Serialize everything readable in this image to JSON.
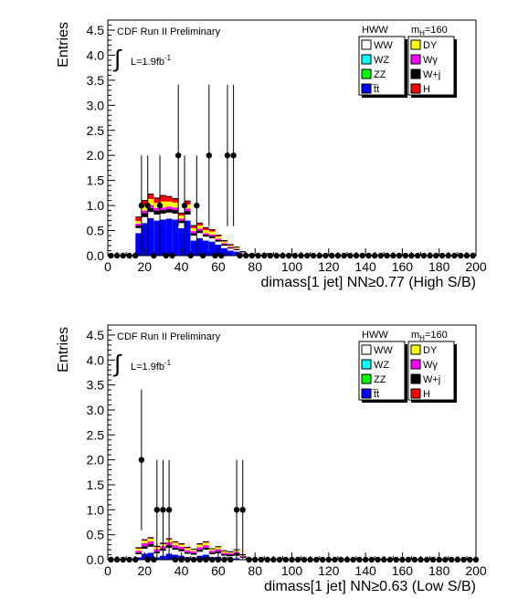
{
  "chart_data": [
    {
      "type": "stacked-histogram-with-data-points",
      "xlabel": "dimass[1 jet] NN≥0.77 (High S/B)",
      "ylabel": "Entries",
      "xlim": [
        0,
        200
      ],
      "ylim": [
        0,
        4.7
      ],
      "xticks": [
        0,
        20,
        40,
        60,
        80,
        100,
        120,
        140,
        160,
        180,
        200
      ],
      "yticks": [
        0.0,
        0.5,
        1.0,
        1.5,
        2.0,
        2.5,
        3.0,
        3.5,
        4.0,
        4.5
      ],
      "bin_width": 3.333,
      "annotations": {
        "experiment": "CDF Run II Preliminary",
        "lumi_symbol": "∫",
        "lumi_text": "L=1.9fb",
        "lumi_exp": "-1",
        "legend_title_left": "HWW",
        "legend_title_right_main": "m",
        "legend_title_right_sub": "H",
        "legend_title_right_rest": "=160"
      },
      "legend": [
        {
          "label": "WW",
          "color": "#ffffff"
        },
        {
          "label": "DY",
          "color": "#ffff00"
        },
        {
          "label": "WZ",
          "color": "#00ffff"
        },
        {
          "label": "Wγ",
          "color": "#ff00ff"
        },
        {
          "label": "ZZ",
          "color": "#00ff00"
        },
        {
          "label": "W+j",
          "color": "#000000"
        },
        {
          "label": "t̅t",
          "color": "#0000ff"
        },
        {
          "label": "H",
          "color": "#ff0000"
        }
      ],
      "stack": [
        {
          "x": 16.7,
          "tt": 0.45,
          "ww": 0.1,
          "wj": 0.05,
          "wg": 0.04,
          "dy": 0.05,
          "h": 0.08
        },
        {
          "x": 20.0,
          "tt": 0.65,
          "ww": 0.12,
          "wj": 0.08,
          "wg": 0.05,
          "dy": 0.1,
          "h": 0.1
        },
        {
          "x": 23.3,
          "tt": 0.75,
          "ww": 0.12,
          "wj": 0.08,
          "wg": 0.06,
          "dy": 0.12,
          "h": 0.1
        },
        {
          "x": 26.7,
          "tt": 0.7,
          "ww": 0.12,
          "wj": 0.08,
          "wg": 0.05,
          "dy": 0.1,
          "h": 0.1
        },
        {
          "x": 30.0,
          "tt": 0.72,
          "ww": 0.12,
          "wj": 0.07,
          "wg": 0.05,
          "dy": 0.12,
          "h": 0.12
        },
        {
          "x": 33.3,
          "tt": 0.74,
          "ww": 0.12,
          "wj": 0.07,
          "wg": 0.05,
          "dy": 0.1,
          "h": 0.1
        },
        {
          "x": 36.7,
          "tt": 0.72,
          "ww": 0.12,
          "wj": 0.07,
          "wg": 0.05,
          "dy": 0.1,
          "h": 0.08
        },
        {
          "x": 40.0,
          "tt": 0.55,
          "ww": 0.1,
          "wj": 0.05,
          "wg": 0.04,
          "dy": 0.06,
          "h": 0.05
        },
        {
          "x": 43.3,
          "tt": 0.7,
          "ww": 0.12,
          "wj": 0.07,
          "wg": 0.05,
          "dy": 0.08,
          "h": 0.07
        },
        {
          "x": 46.7,
          "tt": 0.3,
          "ww": 0.1,
          "wj": 0.05,
          "wg": 0.04,
          "dy": 0.06,
          "h": 0.05
        },
        {
          "x": 50.0,
          "tt": 0.35,
          "ww": 0.1,
          "wj": 0.05,
          "wg": 0.04,
          "dy": 0.06,
          "h": 0.05
        },
        {
          "x": 53.3,
          "tt": 0.3,
          "ww": 0.08,
          "wj": 0.04,
          "wg": 0.03,
          "dy": 0.06,
          "h": 0.05
        },
        {
          "x": 56.7,
          "tt": 0.28,
          "ww": 0.07,
          "wj": 0.04,
          "wg": 0.03,
          "dy": 0.06,
          "h": 0.04
        },
        {
          "x": 60.0,
          "tt": 0.22,
          "ww": 0.06,
          "wj": 0.03,
          "wg": 0.03,
          "dy": 0.04,
          "h": 0.03
        },
        {
          "x": 63.3,
          "tt": 0.15,
          "ww": 0.05,
          "wj": 0.03,
          "wg": 0.02,
          "dy": 0.03,
          "h": 0.02
        },
        {
          "x": 66.7,
          "tt": 0.1,
          "ww": 0.04,
          "wj": 0.02,
          "wg": 0.02,
          "dy": 0.02,
          "h": 0.02
        },
        {
          "x": 70.0,
          "tt": 0.08,
          "ww": 0.03,
          "wj": 0.02,
          "wg": 0.01,
          "dy": 0.02,
          "h": 0.01
        },
        {
          "x": 73.3,
          "tt": 0.03,
          "ww": 0.02,
          "wj": 0.01,
          "wg": 0.01,
          "dy": 0.01,
          "h": 0.0
        },
        {
          "x": 76.7,
          "tt": 0.01,
          "ww": 0.01,
          "wj": 0.0,
          "wg": 0.0,
          "dy": 0.0,
          "h": 0.0
        },
        {
          "x": 86.7,
          "tt": 0.0,
          "ww": 0.02,
          "wj": 0.0,
          "wg": 0.0,
          "dy": 0.02,
          "h": 0.0
        }
      ],
      "data_points": [
        {
          "x": 1.7,
          "y": 0,
          "err": 0
        },
        {
          "x": 5.0,
          "y": 0,
          "err": 0
        },
        {
          "x": 8.3,
          "y": 0,
          "err": 0
        },
        {
          "x": 11.7,
          "y": 0,
          "err": 0
        },
        {
          "x": 15.0,
          "y": 0,
          "err": 0
        },
        {
          "x": 18.3,
          "y": 1,
          "err": 1.0
        },
        {
          "x": 21.7,
          "y": 1,
          "err": 1.0
        },
        {
          "x": 25.0,
          "y": 0,
          "err": 0
        },
        {
          "x": 28.3,
          "y": 1,
          "err": 1.0
        },
        {
          "x": 31.7,
          "y": 0,
          "err": 0
        },
        {
          "x": 35.0,
          "y": 0,
          "err": 0
        },
        {
          "x": 38.3,
          "y": 2,
          "err": 1.41
        },
        {
          "x": 41.7,
          "y": 1,
          "err": 1.0
        },
        {
          "x": 45.0,
          "y": 0,
          "err": 0
        },
        {
          "x": 48.3,
          "y": 1,
          "err": 1.0
        },
        {
          "x": 51.7,
          "y": 0,
          "err": 0
        },
        {
          "x": 55.0,
          "y": 2,
          "err": 1.41
        },
        {
          "x": 58.3,
          "y": 0,
          "err": 0
        },
        {
          "x": 61.7,
          "y": 0,
          "err": 0
        },
        {
          "x": 65.0,
          "y": 2,
          "err": 1.41
        },
        {
          "x": 68.3,
          "y": 2,
          "err": 1.41
        },
        {
          "x": 71.7,
          "y": 0,
          "err": 0
        },
        {
          "x": 75.0,
          "y": 0,
          "err": 0
        },
        {
          "x": 78.3,
          "y": 0,
          "err": 0
        },
        {
          "x": 81.7,
          "y": 0,
          "err": 0
        },
        {
          "x": 85.0,
          "y": 0,
          "err": 0
        },
        {
          "x": 88.3,
          "y": 0,
          "err": 0
        },
        {
          "x": 91.7,
          "y": 0,
          "err": 0
        },
        {
          "x": 95.0,
          "y": 0,
          "err": 0
        },
        {
          "x": 98.3,
          "y": 0,
          "err": 0
        },
        {
          "x": 101.7,
          "y": 0,
          "err": 0
        },
        {
          "x": 105.0,
          "y": 0,
          "err": 0
        },
        {
          "x": 108.3,
          "y": 0,
          "err": 0
        },
        {
          "x": 111.7,
          "y": 0,
          "err": 0
        },
        {
          "x": 115.0,
          "y": 0,
          "err": 0
        },
        {
          "x": 118.3,
          "y": 0,
          "err": 0
        },
        {
          "x": 121.7,
          "y": 0,
          "err": 0
        },
        {
          "x": 125.0,
          "y": 0,
          "err": 0
        },
        {
          "x": 128.3,
          "y": 0,
          "err": 0
        },
        {
          "x": 131.7,
          "y": 0,
          "err": 0
        },
        {
          "x": 135.0,
          "y": 0,
          "err": 0
        },
        {
          "x": 138.3,
          "y": 0,
          "err": 0
        },
        {
          "x": 141.7,
          "y": 0,
          "err": 0
        },
        {
          "x": 145.0,
          "y": 0,
          "err": 0
        },
        {
          "x": 148.3,
          "y": 0,
          "err": 0
        },
        {
          "x": 151.7,
          "y": 0,
          "err": 0
        },
        {
          "x": 155.0,
          "y": 0,
          "err": 0
        },
        {
          "x": 158.3,
          "y": 0,
          "err": 0
        },
        {
          "x": 161.7,
          "y": 0,
          "err": 0
        },
        {
          "x": 165.0,
          "y": 0,
          "err": 0
        },
        {
          "x": 168.3,
          "y": 0,
          "err": 0
        },
        {
          "x": 171.7,
          "y": 0,
          "err": 0
        },
        {
          "x": 175.0,
          "y": 0,
          "err": 0
        },
        {
          "x": 178.3,
          "y": 0,
          "err": 0
        },
        {
          "x": 181.7,
          "y": 0,
          "err": 0
        },
        {
          "x": 185.0,
          "y": 0,
          "err": 0
        },
        {
          "x": 188.3,
          "y": 0,
          "err": 0
        },
        {
          "x": 191.7,
          "y": 0,
          "err": 0
        },
        {
          "x": 195.0,
          "y": 0,
          "err": 0
        },
        {
          "x": 198.3,
          "y": 0,
          "err": 0
        }
      ]
    },
    {
      "type": "stacked-histogram-with-data-points",
      "xlabel": "dimass[1 jet] NN≥0.63 (Low S/B)",
      "ylabel": "Entries",
      "xlim": [
        0,
        200
      ],
      "ylim": [
        0,
        4.7
      ],
      "xticks": [
        0,
        20,
        40,
        60,
        80,
        100,
        120,
        140,
        160,
        180,
        200
      ],
      "yticks": [
        0.0,
        0.5,
        1.0,
        1.5,
        2.0,
        2.5,
        3.0,
        3.5,
        4.0,
        4.5
      ],
      "bin_width": 3.333,
      "annotations": {
        "experiment": "CDF Run II Preliminary",
        "lumi_symbol": "∫",
        "lumi_text": "L=1.9fb",
        "lumi_exp": "-1",
        "legend_title_left": "HWW",
        "legend_title_right_main": "m",
        "legend_title_right_sub": "H",
        "legend_title_right_rest": "=160"
      },
      "legend": [
        {
          "label": "WW",
          "color": "#ffffff"
        },
        {
          "label": "DY",
          "color": "#ffff00"
        },
        {
          "label": "WZ",
          "color": "#00ffff"
        },
        {
          "label": "Wγ",
          "color": "#ff00ff"
        },
        {
          "label": "ZZ",
          "color": "#00ff00"
        },
        {
          "label": "W+j",
          "color": "#000000"
        },
        {
          "label": "t̅t",
          "color": "#0000ff"
        },
        {
          "label": "H",
          "color": "#ff0000"
        }
      ],
      "stack": [
        {
          "x": 16.7,
          "tt": 0.05,
          "ww": 0.06,
          "wj": 0.03,
          "wg": 0.04,
          "dy": 0.04,
          "h": 0.02
        },
        {
          "x": 20.0,
          "tt": 0.12,
          "ww": 0.1,
          "wj": 0.05,
          "wg": 0.06,
          "dy": 0.05,
          "h": 0.02
        },
        {
          "x": 23.3,
          "tt": 0.14,
          "ww": 0.12,
          "wj": 0.05,
          "wg": 0.06,
          "dy": 0.05,
          "h": 0.02
        },
        {
          "x": 26.7,
          "tt": 0.05,
          "ww": 0.08,
          "wj": 0.03,
          "wg": 0.05,
          "dy": 0.04,
          "h": 0.02
        },
        {
          "x": 30.0,
          "tt": 0.08,
          "ww": 0.1,
          "wj": 0.04,
          "wg": 0.05,
          "dy": 0.04,
          "h": 0.02
        },
        {
          "x": 33.3,
          "tt": 0.12,
          "ww": 0.12,
          "wj": 0.05,
          "wg": 0.06,
          "dy": 0.05,
          "h": 0.02
        },
        {
          "x": 36.7,
          "tt": 0.1,
          "ww": 0.1,
          "wj": 0.04,
          "wg": 0.05,
          "dy": 0.05,
          "h": 0.02
        },
        {
          "x": 40.0,
          "tt": 0.08,
          "ww": 0.09,
          "wj": 0.04,
          "wg": 0.05,
          "dy": 0.04,
          "h": 0.02
        },
        {
          "x": 43.3,
          "tt": 0.05,
          "ww": 0.07,
          "wj": 0.03,
          "wg": 0.04,
          "dy": 0.04,
          "h": 0.02
        },
        {
          "x": 46.7,
          "tt": 0.04,
          "ww": 0.06,
          "wj": 0.03,
          "wg": 0.04,
          "dy": 0.03,
          "h": 0.01
        },
        {
          "x": 50.0,
          "tt": 0.08,
          "ww": 0.08,
          "wj": 0.04,
          "wg": 0.05,
          "dy": 0.05,
          "h": 0.02
        },
        {
          "x": 53.3,
          "tt": 0.1,
          "ww": 0.1,
          "wj": 0.04,
          "wg": 0.05,
          "dy": 0.05,
          "h": 0.02
        },
        {
          "x": 56.7,
          "tt": 0.05,
          "ww": 0.06,
          "wj": 0.03,
          "wg": 0.04,
          "dy": 0.03,
          "h": 0.01
        },
        {
          "x": 60.0,
          "tt": 0.06,
          "ww": 0.07,
          "wj": 0.04,
          "wg": 0.04,
          "dy": 0.04,
          "h": 0.01
        },
        {
          "x": 63.3,
          "tt": 0.03,
          "ww": 0.05,
          "wj": 0.03,
          "wg": 0.03,
          "dy": 0.03,
          "h": 0.01
        },
        {
          "x": 66.7,
          "tt": 0.02,
          "ww": 0.05,
          "wj": 0.03,
          "wg": 0.03,
          "dy": 0.02,
          "h": 0.01
        },
        {
          "x": 70.0,
          "tt": 0.03,
          "ww": 0.05,
          "wj": 0.05,
          "wg": 0.03,
          "dy": 0.03,
          "h": 0.01
        },
        {
          "x": 73.3,
          "tt": 0.01,
          "ww": 0.03,
          "wj": 0.02,
          "wg": 0.02,
          "dy": 0.02,
          "h": 0.0
        },
        {
          "x": 76.7,
          "tt": 0.0,
          "ww": 0.01,
          "wj": 0.01,
          "wg": 0.0,
          "dy": 0.0,
          "h": 0.0
        }
      ],
      "data_points": [
        {
          "x": 1.7,
          "y": 0,
          "err": 0
        },
        {
          "x": 5.0,
          "y": 0,
          "err": 0
        },
        {
          "x": 8.3,
          "y": 0,
          "err": 0
        },
        {
          "x": 11.7,
          "y": 0,
          "err": 0
        },
        {
          "x": 15.0,
          "y": 0,
          "err": 0
        },
        {
          "x": 18.3,
          "y": 2,
          "err": 1.41
        },
        {
          "x": 21.7,
          "y": 0,
          "err": 0
        },
        {
          "x": 25.0,
          "y": 0,
          "err": 0
        },
        {
          "x": 26.7,
          "y": 1,
          "err": 1.0
        },
        {
          "x": 30.0,
          "y": 1,
          "err": 1.0
        },
        {
          "x": 33.3,
          "y": 1,
          "err": 1.0
        },
        {
          "x": 36.7,
          "y": 0,
          "err": 0
        },
        {
          "x": 40.0,
          "y": 0,
          "err": 0
        },
        {
          "x": 43.3,
          "y": 0,
          "err": 0
        },
        {
          "x": 46.7,
          "y": 0,
          "err": 0
        },
        {
          "x": 50.0,
          "y": 0,
          "err": 0
        },
        {
          "x": 53.3,
          "y": 0,
          "err": 0
        },
        {
          "x": 56.7,
          "y": 0,
          "err": 0
        },
        {
          "x": 60.0,
          "y": 0,
          "err": 0
        },
        {
          "x": 63.3,
          "y": 0,
          "err": 0
        },
        {
          "x": 66.7,
          "y": 0,
          "err": 0
        },
        {
          "x": 70.0,
          "y": 1,
          "err": 1.0
        },
        {
          "x": 73.3,
          "y": 1,
          "err": 1.0
        },
        {
          "x": 76.7,
          "y": 0,
          "err": 0
        },
        {
          "x": 80.0,
          "y": 0,
          "err": 0
        },
        {
          "x": 83.3,
          "y": 0,
          "err": 0
        },
        {
          "x": 86.7,
          "y": 0,
          "err": 0
        },
        {
          "x": 90.0,
          "y": 0,
          "err": 0
        },
        {
          "x": 93.3,
          "y": 0,
          "err": 0
        },
        {
          "x": 96.7,
          "y": 0,
          "err": 0
        },
        {
          "x": 100.0,
          "y": 0,
          "err": 0
        },
        {
          "x": 103.3,
          "y": 0,
          "err": 0
        },
        {
          "x": 106.7,
          "y": 0,
          "err": 0
        },
        {
          "x": 110.0,
          "y": 0,
          "err": 0
        },
        {
          "x": 113.3,
          "y": 0,
          "err": 0
        },
        {
          "x": 116.7,
          "y": 0,
          "err": 0
        },
        {
          "x": 120.0,
          "y": 0,
          "err": 0
        },
        {
          "x": 123.3,
          "y": 0,
          "err": 0
        },
        {
          "x": 126.7,
          "y": 0,
          "err": 0
        },
        {
          "x": 130.0,
          "y": 0,
          "err": 0
        },
        {
          "x": 133.3,
          "y": 0,
          "err": 0
        },
        {
          "x": 136.7,
          "y": 0,
          "err": 0
        },
        {
          "x": 140.0,
          "y": 0,
          "err": 0
        },
        {
          "x": 143.3,
          "y": 0,
          "err": 0
        },
        {
          "x": 146.7,
          "y": 0,
          "err": 0
        },
        {
          "x": 150.0,
          "y": 0,
          "err": 0
        },
        {
          "x": 153.3,
          "y": 0,
          "err": 0
        },
        {
          "x": 156.7,
          "y": 0,
          "err": 0
        },
        {
          "x": 160.0,
          "y": 0,
          "err": 0
        },
        {
          "x": 163.3,
          "y": 0,
          "err": 0
        },
        {
          "x": 166.7,
          "y": 0,
          "err": 0
        },
        {
          "x": 170.0,
          "y": 0,
          "err": 0
        },
        {
          "x": 173.3,
          "y": 0,
          "err": 0
        },
        {
          "x": 176.7,
          "y": 0,
          "err": 0
        },
        {
          "x": 180.0,
          "y": 0,
          "err": 0
        },
        {
          "x": 183.3,
          "y": 0,
          "err": 0
        },
        {
          "x": 186.7,
          "y": 0,
          "err": 0
        },
        {
          "x": 190.0,
          "y": 0,
          "err": 0
        },
        {
          "x": 193.3,
          "y": 0,
          "err": 0
        },
        {
          "x": 196.7,
          "y": 0,
          "err": 0
        },
        {
          "x": 200.0,
          "y": 0,
          "err": 0
        }
      ]
    }
  ]
}
